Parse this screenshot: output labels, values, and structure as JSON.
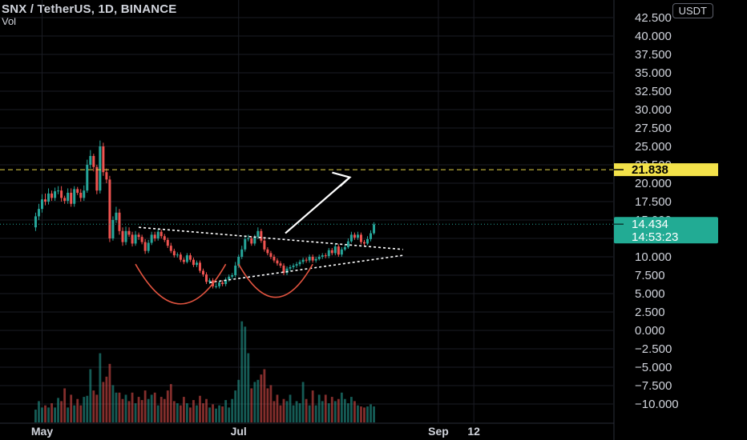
{
  "header": {
    "title": "SNX / TetherUS, 1D, BINANCE",
    "volume_label": "Vol",
    "currency": "USDT"
  },
  "colors": {
    "up": "#26a69a",
    "down": "#ef5350",
    "grid": "#1a1c23",
    "axis_text": "#d1d4dc",
    "resistance": "#e6d64a",
    "annotation": "#ffffff",
    "cup_curve": "#e0533f"
  },
  "chart_data": {
    "type": "candlestick",
    "symbol": "SNX / TetherUS",
    "interval": "1D",
    "exchange": "BINANCE",
    "y_axis": {
      "ticks": [
        "42.500",
        "40.000",
        "37.500",
        "35.000",
        "32.500",
        "30.000",
        "27.500",
        "25.000",
        "22.500",
        "20.000",
        "17.500",
        "15.000",
        "12.500",
        "10.000",
        "7.500",
        "5.000",
        "2.500",
        "0.000",
        "−2.500",
        "−5.000",
        "−7.500",
        "−10.000"
      ],
      "tick_values": [
        42.5,
        40,
        37.5,
        35,
        32.5,
        30,
        27.5,
        25,
        22.5,
        20,
        17.5,
        15,
        12.5,
        10,
        7.5,
        5,
        2.5,
        0,
        -2.5,
        -5,
        -7.5,
        -10
      ]
    },
    "x_axis": {
      "labels": [
        "May",
        "Jul",
        "Sep",
        "12"
      ],
      "label_days": [
        0,
        61,
        123,
        134
      ],
      "range_days": [
        0,
        140
      ]
    },
    "price_labels": {
      "resistance": "21.838",
      "last_price": "14.434",
      "countdown": "14:53:23"
    },
    "resistance_level": 21.838,
    "last_price": 14.434,
    "annotations": {
      "triangle_upper": [
        [
          30,
          14.0
        ],
        [
          112,
          11.0
        ]
      ],
      "triangle_lower": [
        [
          52,
          6.5
        ],
        [
          112,
          10.2
        ]
      ],
      "breakout_arrow": [
        [
          75.5,
          13.2
        ],
        [
          95.5,
          20.8
        ]
      ],
      "cup1": {
        "from": 29,
        "to": 57,
        "bottom": 3.6,
        "top": 9.0
      },
      "cup2": {
        "from": 61,
        "to": 84,
        "bottom": 4.5,
        "top": 9.0
      }
    },
    "candles": {
      "start_day": -2,
      "open": [
        14.0,
        15.5,
        16.5,
        17.8,
        17.5,
        18.6,
        18.0,
        18.9,
        19.0,
        18.0,
        17.6,
        18.7,
        17.2,
        19.2,
        18.7,
        18.0,
        19.0,
        22.5,
        23.7,
        22.2,
        19.0,
        25.0,
        21.5,
        20.5,
        12.5,
        15.0,
        16.0,
        13.5,
        12.0,
        13.5,
        13.0,
        11.8,
        13.0,
        12.7,
        12.0,
        10.8,
        11.9,
        13.0,
        12.5,
        13.4,
        12.8,
        12.3,
        11.5,
        10.8,
        10.2,
        10.3,
        9.6,
        9.3,
        10.2,
        9.6,
        8.9,
        9.2,
        8.1,
        7.6,
        6.6,
        6.8,
        6.0,
        6.0,
        6.5,
        6.3,
        6.9,
        7.3,
        7.5,
        8.8,
        10.0,
        11.0,
        12.4,
        12.5,
        11.8,
        12.7,
        13.5,
        12.2,
        11.0,
        10.5,
        10.0,
        9.5,
        9.1,
        8.8,
        7.8,
        8.4,
        8.6,
        8.8,
        9.0,
        9.3,
        9.6,
        9.5,
        10.0,
        9.5,
        9.7,
        10.0,
        10.2,
        10.1,
        10.9,
        10.5,
        11.4,
        10.3,
        11.0,
        11.3,
        12.1,
        13.0,
        12.6,
        13.0,
        12.0,
        11.8,
        12.4,
        13.2
      ],
      "close": [
        15.5,
        16.5,
        17.8,
        17.5,
        18.6,
        18.0,
        18.9,
        19.0,
        18.0,
        17.6,
        18.7,
        17.2,
        19.2,
        18.7,
        18.0,
        19.0,
        22.5,
        23.7,
        22.2,
        19.0,
        25.0,
        21.5,
        20.5,
        12.5,
        15.0,
        16.0,
        13.5,
        12.0,
        13.5,
        13.0,
        11.8,
        13.0,
        12.7,
        12.0,
        10.8,
        11.9,
        13.0,
        12.5,
        13.4,
        12.8,
        12.3,
        11.5,
        10.8,
        10.2,
        10.3,
        9.6,
        9.3,
        10.2,
        9.6,
        8.9,
        9.2,
        8.1,
        7.6,
        6.6,
        6.8,
        6.0,
        6.0,
        6.5,
        6.3,
        6.9,
        7.3,
        7.5,
        8.8,
        10.0,
        11.0,
        12.4,
        12.5,
        11.8,
        12.7,
        13.5,
        12.2,
        11.0,
        10.5,
        10.0,
        9.5,
        9.1,
        8.8,
        7.8,
        8.4,
        8.6,
        8.8,
        9.0,
        9.3,
        9.6,
        9.5,
        10.0,
        9.5,
        9.7,
        10.0,
        10.2,
        10.1,
        10.9,
        10.5,
        11.4,
        10.3,
        11.0,
        11.3,
        12.1,
        13.0,
        12.6,
        13.0,
        12.0,
        11.8,
        12.4,
        13.2,
        14.4
      ],
      "high": [
        16.0,
        17.2,
        18.5,
        18.6,
        19.3,
        19.0,
        19.4,
        19.6,
        19.6,
        18.3,
        19.3,
        19.3,
        19.6,
        19.5,
        19.2,
        19.7,
        23.2,
        24.5,
        24.0,
        22.5,
        25.8,
        25.5,
        22.0,
        21.0,
        15.5,
        16.8,
        16.5,
        14.0,
        14.1,
        14.0,
        13.4,
        13.5,
        13.3,
        13.0,
        12.4,
        12.3,
        13.4,
        13.4,
        13.8,
        13.7,
        13.1,
        12.6,
        11.9,
        11.1,
        10.6,
        10.6,
        9.9,
        10.5,
        10.5,
        9.9,
        9.5,
        9.5,
        8.4,
        7.9,
        7.1,
        7.1,
        6.4,
        6.7,
        6.8,
        7.2,
        7.6,
        7.8,
        9.3,
        10.3,
        11.5,
        12.9,
        13.0,
        12.8,
        13.0,
        14.0,
        13.8,
        12.5,
        11.3,
        10.8,
        10.3,
        9.8,
        9.4,
        9.1,
        8.7,
        8.9,
        9.1,
        9.3,
        9.6,
        9.9,
        9.9,
        10.3,
        10.3,
        10.0,
        10.3,
        10.5,
        10.5,
        11.2,
        11.2,
        11.8,
        11.7,
        11.3,
        11.6,
        12.5,
        13.4,
        13.3,
        13.4,
        13.3,
        12.3,
        12.8,
        13.6,
        14.7
      ],
      "low": [
        13.5,
        15.0,
        16.0,
        17.0,
        17.1,
        17.6,
        17.6,
        18.5,
        17.5,
        17.2,
        17.2,
        16.8,
        16.8,
        18.4,
        17.5,
        17.6,
        18.7,
        22.0,
        21.6,
        18.5,
        18.6,
        21.0,
        20.0,
        12.0,
        12.2,
        14.6,
        13.0,
        11.5,
        11.6,
        12.7,
        11.4,
        11.5,
        12.3,
        11.7,
        10.4,
        10.5,
        11.6,
        12.1,
        12.2,
        12.5,
        12.0,
        11.2,
        10.5,
        9.9,
        9.9,
        9.3,
        9.0,
        9.1,
        9.3,
        8.6,
        8.6,
        7.8,
        7.3,
        6.3,
        6.3,
        5.7,
        5.7,
        5.7,
        6.0,
        6.0,
        6.6,
        7.0,
        7.2,
        8.5,
        9.7,
        10.7,
        12.1,
        11.5,
        11.5,
        12.4,
        11.9,
        10.7,
        10.2,
        9.7,
        9.2,
        8.8,
        8.5,
        7.5,
        7.5,
        8.1,
        8.3,
        8.5,
        8.7,
        9.0,
        9.2,
        9.2,
        9.2,
        9.2,
        9.5,
        9.7,
        9.8,
        9.8,
        10.2,
        10.2,
        10.0,
        10.0,
        10.8,
        11.1,
        11.9,
        12.3,
        12.3,
        11.7,
        11.5,
        11.6,
        12.1,
        13.0
      ],
      "volume": [
        1.2,
        2.0,
        1.4,
        1.6,
        1.4,
        1.8,
        1.4,
        2.3,
        2.0,
        3.2,
        1.4,
        2.6,
        1.6,
        2.2,
        1.6,
        2.4,
        2.5,
        5.0,
        3.0,
        2.6,
        6.5,
        3.8,
        4.3,
        5.5,
        3.5,
        2.8,
        2.8,
        2.2,
        2.6,
        2.0,
        2.8,
        1.8,
        2.4,
        2.1,
        3.0,
        2.2,
        2.6,
        2.8,
        1.6,
        2.4,
        2.2,
        3.0,
        3.6,
        2.0,
        1.8,
        1.6,
        2.4,
        1.8,
        1.4,
        2.1,
        1.6,
        2.5,
        1.8,
        2.2,
        1.4,
        1.7,
        1.3,
        1.6,
        1.5,
        2.1,
        1.4,
        2.2,
        3.0,
        4.0,
        9.5,
        9.0,
        6.5,
        3.2,
        3.8,
        4.0,
        4.5,
        5.0,
        3.2,
        3.5,
        2.0,
        2.6,
        1.6,
        2.2,
        2.0,
        2.6,
        1.6,
        2.0,
        1.8,
        3.8,
        2.2,
        1.6,
        3.0,
        1.6,
        2.6,
        2.0,
        2.6,
        1.8,
        2.4,
        2.0,
        2.2,
        2.8,
        2.2,
        1.8,
        2.4,
        2.0,
        1.6,
        1.5,
        1.4,
        1.5,
        1.7,
        1.5
      ]
    }
  }
}
